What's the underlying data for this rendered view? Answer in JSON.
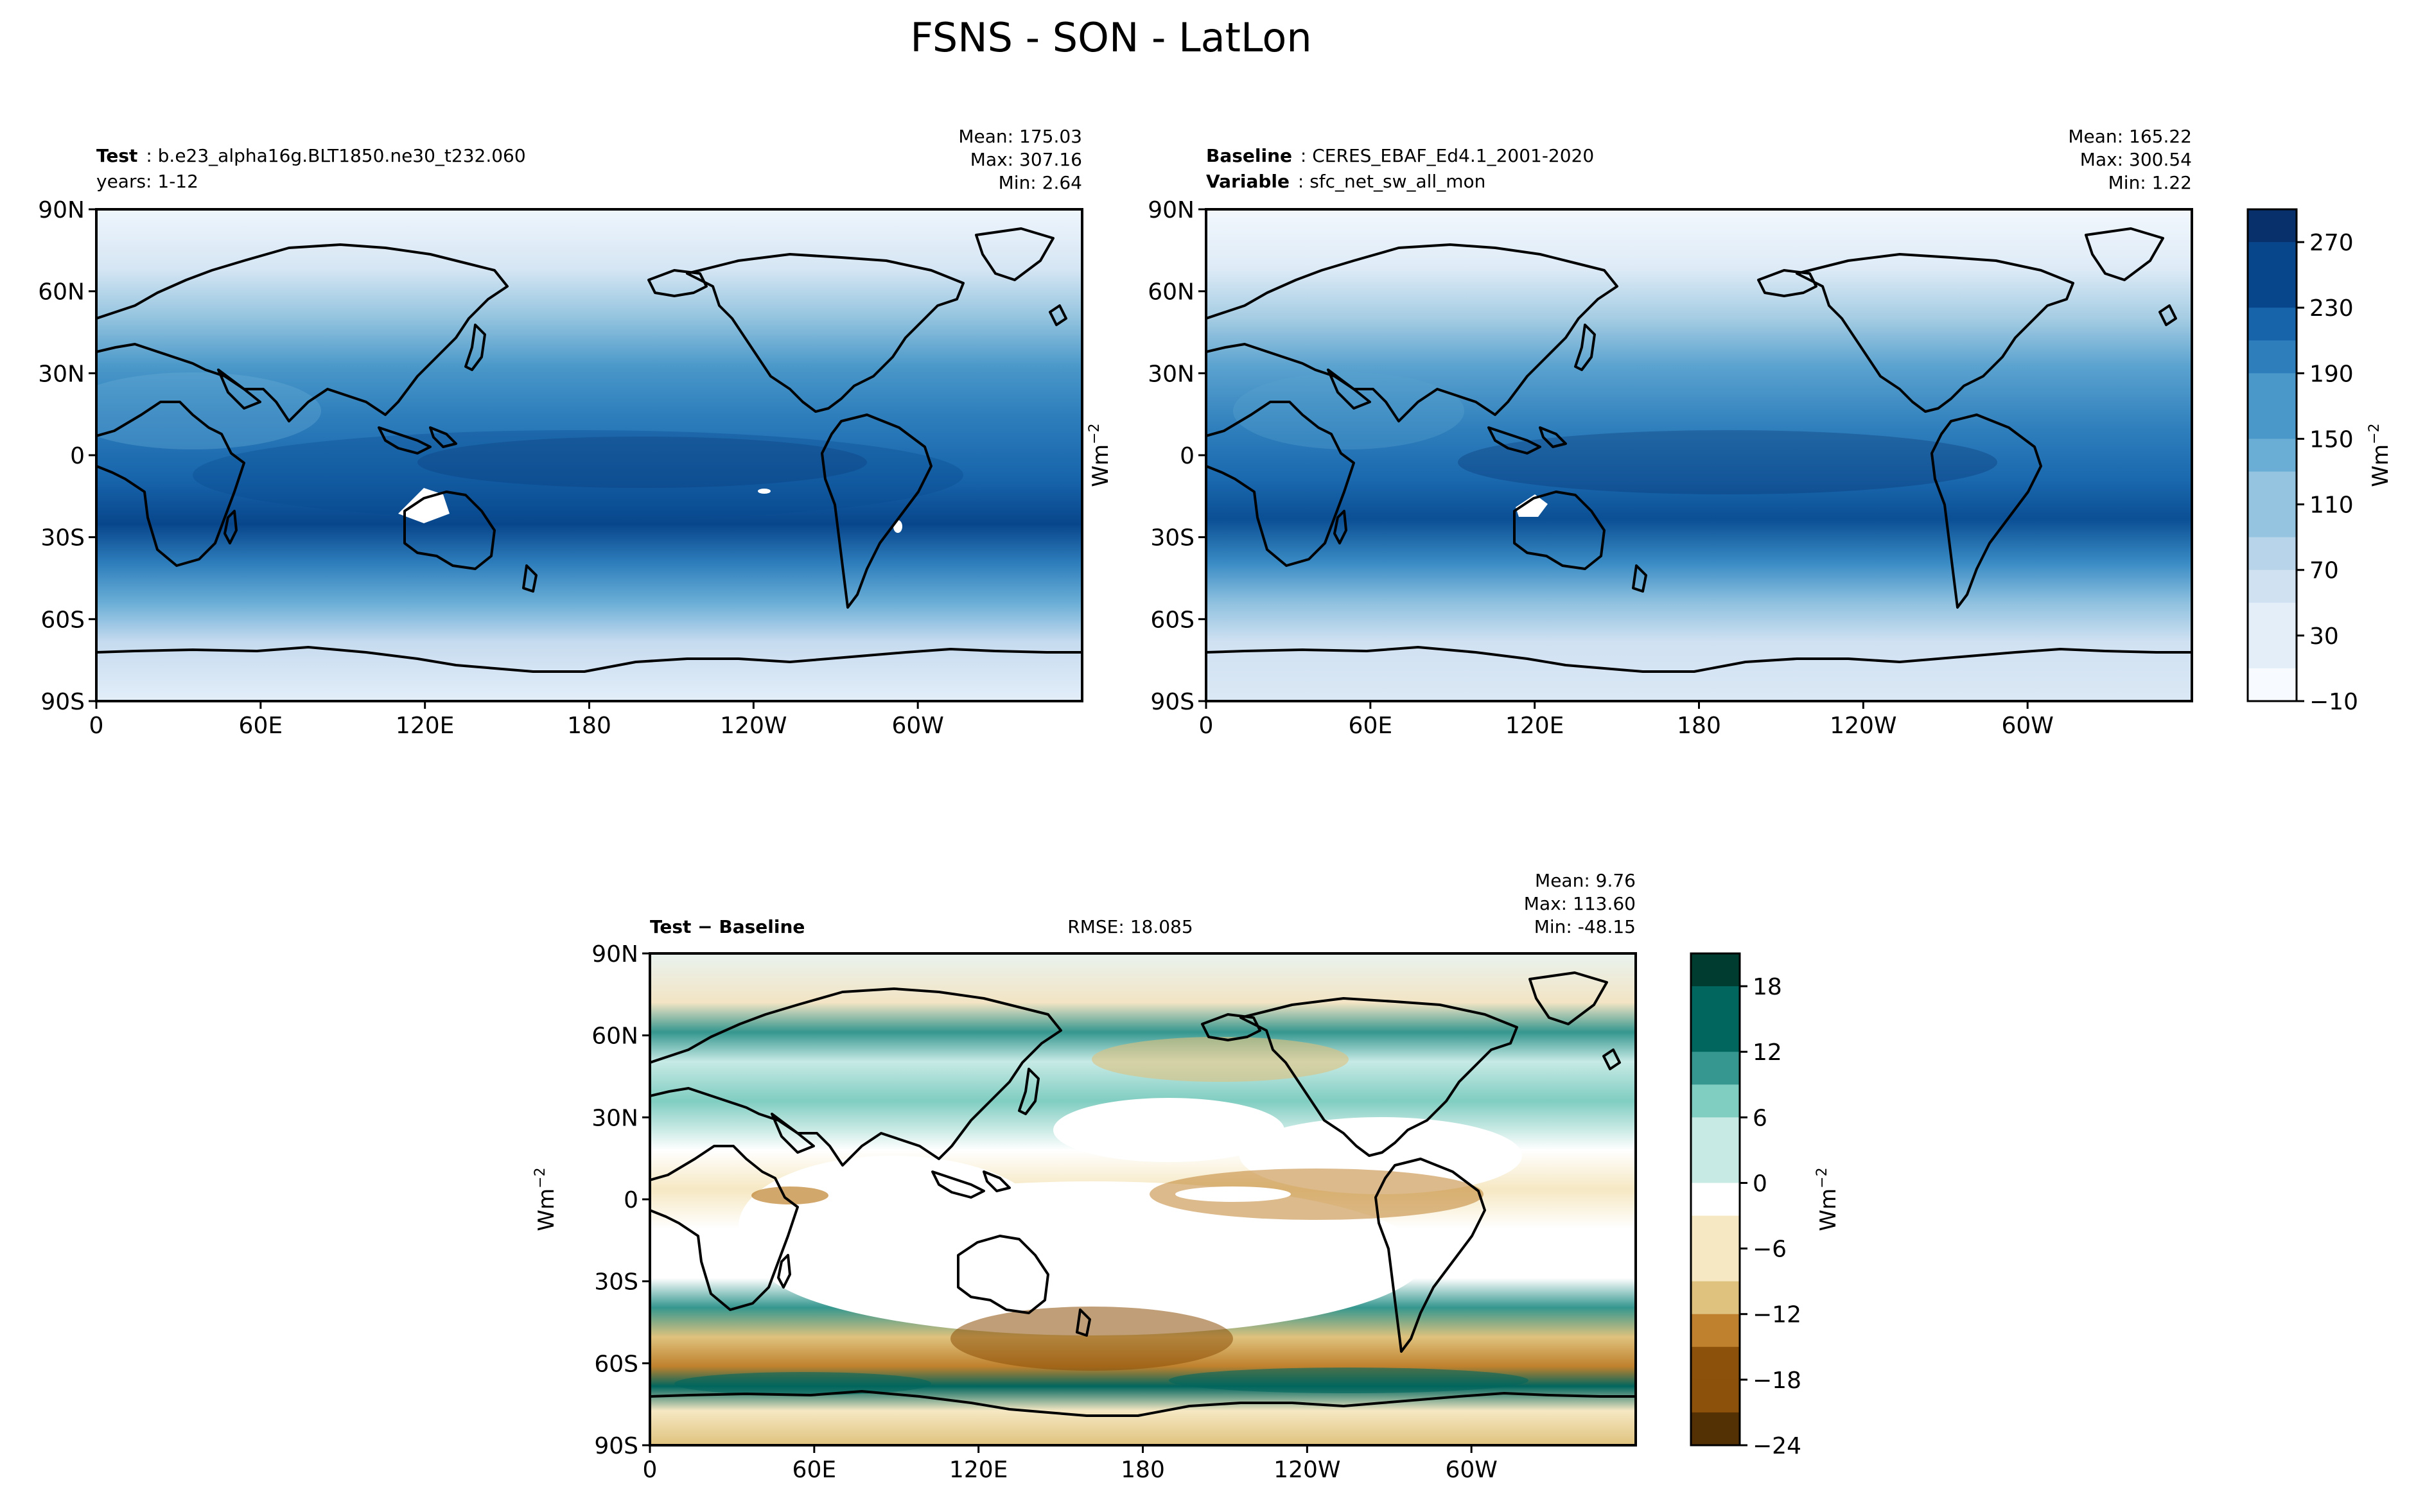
{
  "title": "FSNS - SON - LatLon",
  "colors": {
    "blues": [
      "#f7fbff",
      "#e3eef9",
      "#d0e1f2",
      "#b7d4ea",
      "#94c4df",
      "#6aaed6",
      "#4a98c9",
      "#2e7ebc",
      "#1764ab",
      "#08468b",
      "#08306b"
    ],
    "diff": [
      "#543005",
      "#8c510a",
      "#bf812d",
      "#dfc27d",
      "#f6e8c3",
      "#ffffff",
      "#c7eae5",
      "#80cdc1",
      "#35978f",
      "#01665e",
      "#003c30"
    ]
  },
  "chart_data": [
    {
      "type": "heatmap",
      "name": "test",
      "label_bold": "Test",
      "label_value": "b.e23_alpha16g.BLT1850.ne30_t232.060",
      "label_line2": "years: 1-12",
      "stats": [
        "Mean: 175.03",
        "Max: 307.16",
        "Min:  2.64"
      ],
      "xticks": [
        "0",
        "60E",
        "120E",
        "180",
        "120W",
        "60W"
      ],
      "yticks": [
        "90N",
        "60N",
        "30N",
        "0",
        "30S",
        "60S",
        "90S"
      ],
      "xlim": [
        0,
        360
      ],
      "ylim": [
        -90,
        90
      ]
    },
    {
      "type": "heatmap",
      "name": "baseline",
      "label1_bold": "Baseline",
      "label1_value": "CERES_EBAF_Ed4.1_2001-2020",
      "label2_bold": "Variable",
      "label2_value": "sfc_net_sw_all_mon",
      "stats": [
        "Mean: 165.22",
        "Max: 300.54",
        "Min:  1.22"
      ],
      "xticks": [
        "0",
        "60E",
        "120E",
        "180",
        "120W",
        "60W"
      ],
      "yticks": [
        "90N",
        "60N",
        "30N",
        "0",
        "30S",
        "60S",
        "90S"
      ],
      "ylabel": "Wm",
      "ylabel_sup": "−2",
      "xlim": [
        0,
        360
      ],
      "ylim": [
        -90,
        90
      ],
      "colorbar": {
        "ticks": [
          "270",
          "230",
          "190",
          "150",
          "110",
          "70",
          "30",
          "−10"
        ],
        "label": "Wm",
        "label_sup": "−2",
        "range": [
          -10,
          290
        ]
      }
    },
    {
      "type": "heatmap",
      "name": "difference",
      "label_bold": "Test − Baseline",
      "rmse": "RMSE: 18.085",
      "stats": [
        "Mean:  9.76",
        "Max: 113.60",
        "Min: -48.15"
      ],
      "xticks": [
        "0",
        "60E",
        "120E",
        "180",
        "120W",
        "60W"
      ],
      "yticks": [
        "90N",
        "60N",
        "30N",
        "0",
        "30S",
        "60S",
        "90S"
      ],
      "ylabel": "Wm",
      "ylabel_sup": "−2",
      "xlim": [
        0,
        360
      ],
      "ylim": [
        -90,
        90
      ],
      "colorbar": {
        "ticks": [
          "18",
          "12",
          "6",
          "0",
          "−6",
          "−12",
          "−18",
          "−24"
        ],
        "label": "Wm",
        "label_sup": "−2",
        "range": [
          -24,
          21
        ]
      }
    }
  ]
}
